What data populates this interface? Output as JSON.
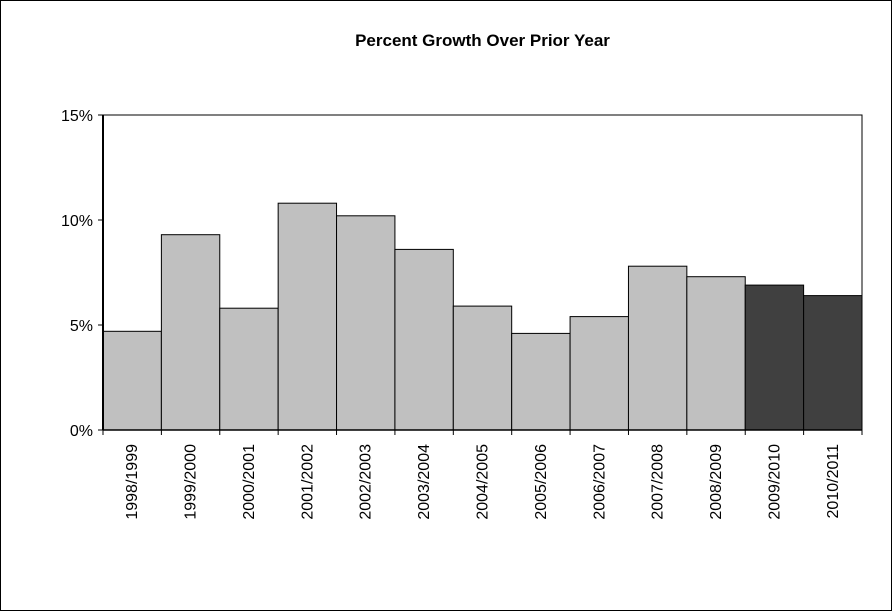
{
  "chart_data": {
    "type": "bar",
    "title": "Percent Growth Over Prior Year",
    "xlabel": "",
    "ylabel": "",
    "categories": [
      "1998/1999",
      "1999/2000",
      "2000/2001",
      "2001/2002",
      "2002/2003",
      "2003/2004",
      "2004/2005",
      "2005/2006",
      "2006/2007",
      "2007/2008",
      "2008/2009",
      "2009/2010",
      "2010/2011"
    ],
    "values": [
      4.7,
      9.3,
      5.8,
      10.8,
      10.2,
      8.6,
      5.9,
      4.6,
      5.4,
      7.8,
      7.3,
      6.9,
      6.4
    ],
    "projected": [
      false,
      false,
      false,
      false,
      false,
      false,
      false,
      false,
      false,
      false,
      false,
      true,
      true
    ],
    "ylim": [
      0,
      15
    ],
    "yticks": [
      0,
      5,
      10,
      15
    ],
    "ytick_labels": [
      "0%",
      "5%",
      "10%",
      "15%"
    ],
    "grid": false,
    "legend": "none",
    "colors": {
      "actual": "#c0c0c0",
      "projected": "#404040",
      "outline": "#000000"
    }
  }
}
